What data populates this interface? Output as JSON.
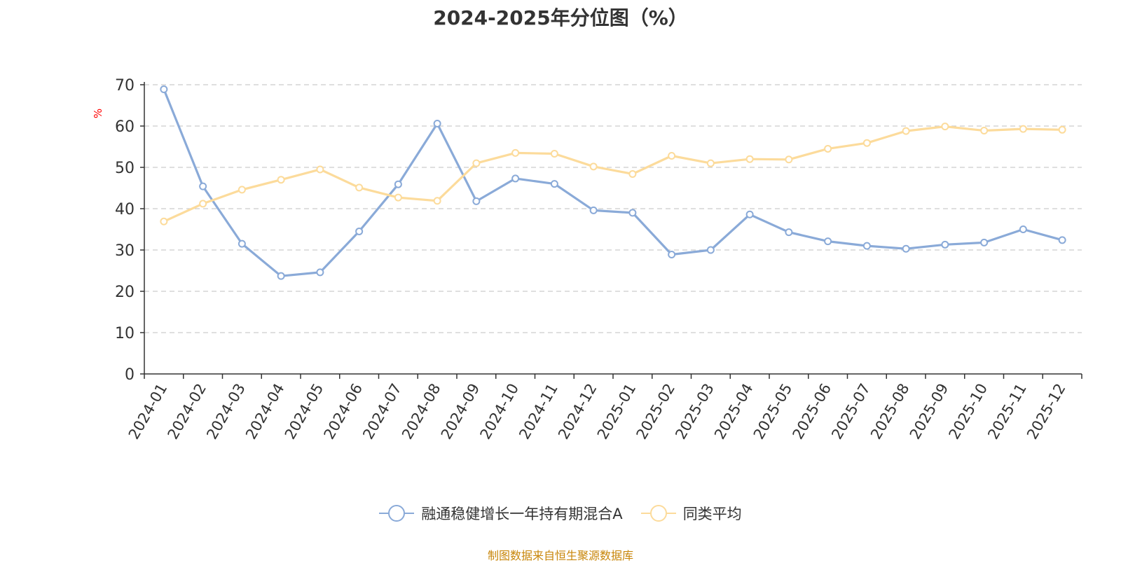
{
  "chart_data": {
    "type": "line",
    "title": "2024-2025年分位图（%）",
    "ylabel": "%",
    "xlabel": "",
    "ylim": [
      0,
      70
    ],
    "yticks": [
      0,
      10,
      20,
      30,
      40,
      50,
      60,
      70
    ],
    "grid": "horizontal dashed",
    "legend_position": "bottom-center",
    "categories": [
      "2024-01",
      "2024-02",
      "2024-03",
      "2024-04",
      "2024-05",
      "2024-06",
      "2024-07",
      "2024-08",
      "2024-09",
      "2024-10",
      "2024-11",
      "2024-12",
      "2025-01",
      "2025-02",
      "2025-03",
      "2025-04",
      "2025-05",
      "2025-06",
      "2025-07",
      "2025-08",
      "2025-09",
      "2025-10",
      "2025-11",
      "2025-12"
    ],
    "series": [
      {
        "name": "融通稳健增长一年持有期混合A",
        "color": "#8aaad8",
        "values": [
          68.9,
          45.4,
          31.5,
          23.7,
          24.6,
          34.5,
          45.9,
          60.6,
          41.8,
          47.3,
          46.0,
          39.6,
          39.0,
          28.9,
          30.0,
          38.6,
          34.3,
          32.1,
          31.0,
          30.3,
          31.3,
          31.8,
          35.0,
          32.4
        ]
      },
      {
        "name": "同类平均",
        "color": "#fcdb9b",
        "values": [
          36.9,
          41.2,
          44.6,
          47.0,
          49.5,
          45.1,
          42.7,
          41.9,
          51.0,
          53.5,
          53.3,
          50.2,
          48.4,
          52.8,
          51.0,
          52.0,
          51.9,
          54.5,
          55.9,
          58.8,
          59.9,
          58.9,
          59.3,
          59.1
        ]
      }
    ]
  },
  "source_note": "制图数据来自恒生聚源数据库",
  "colors": {
    "axis": "#333333",
    "grid": "#cccccc",
    "ylabel": "#ff0000",
    "source": "#c8860a"
  }
}
